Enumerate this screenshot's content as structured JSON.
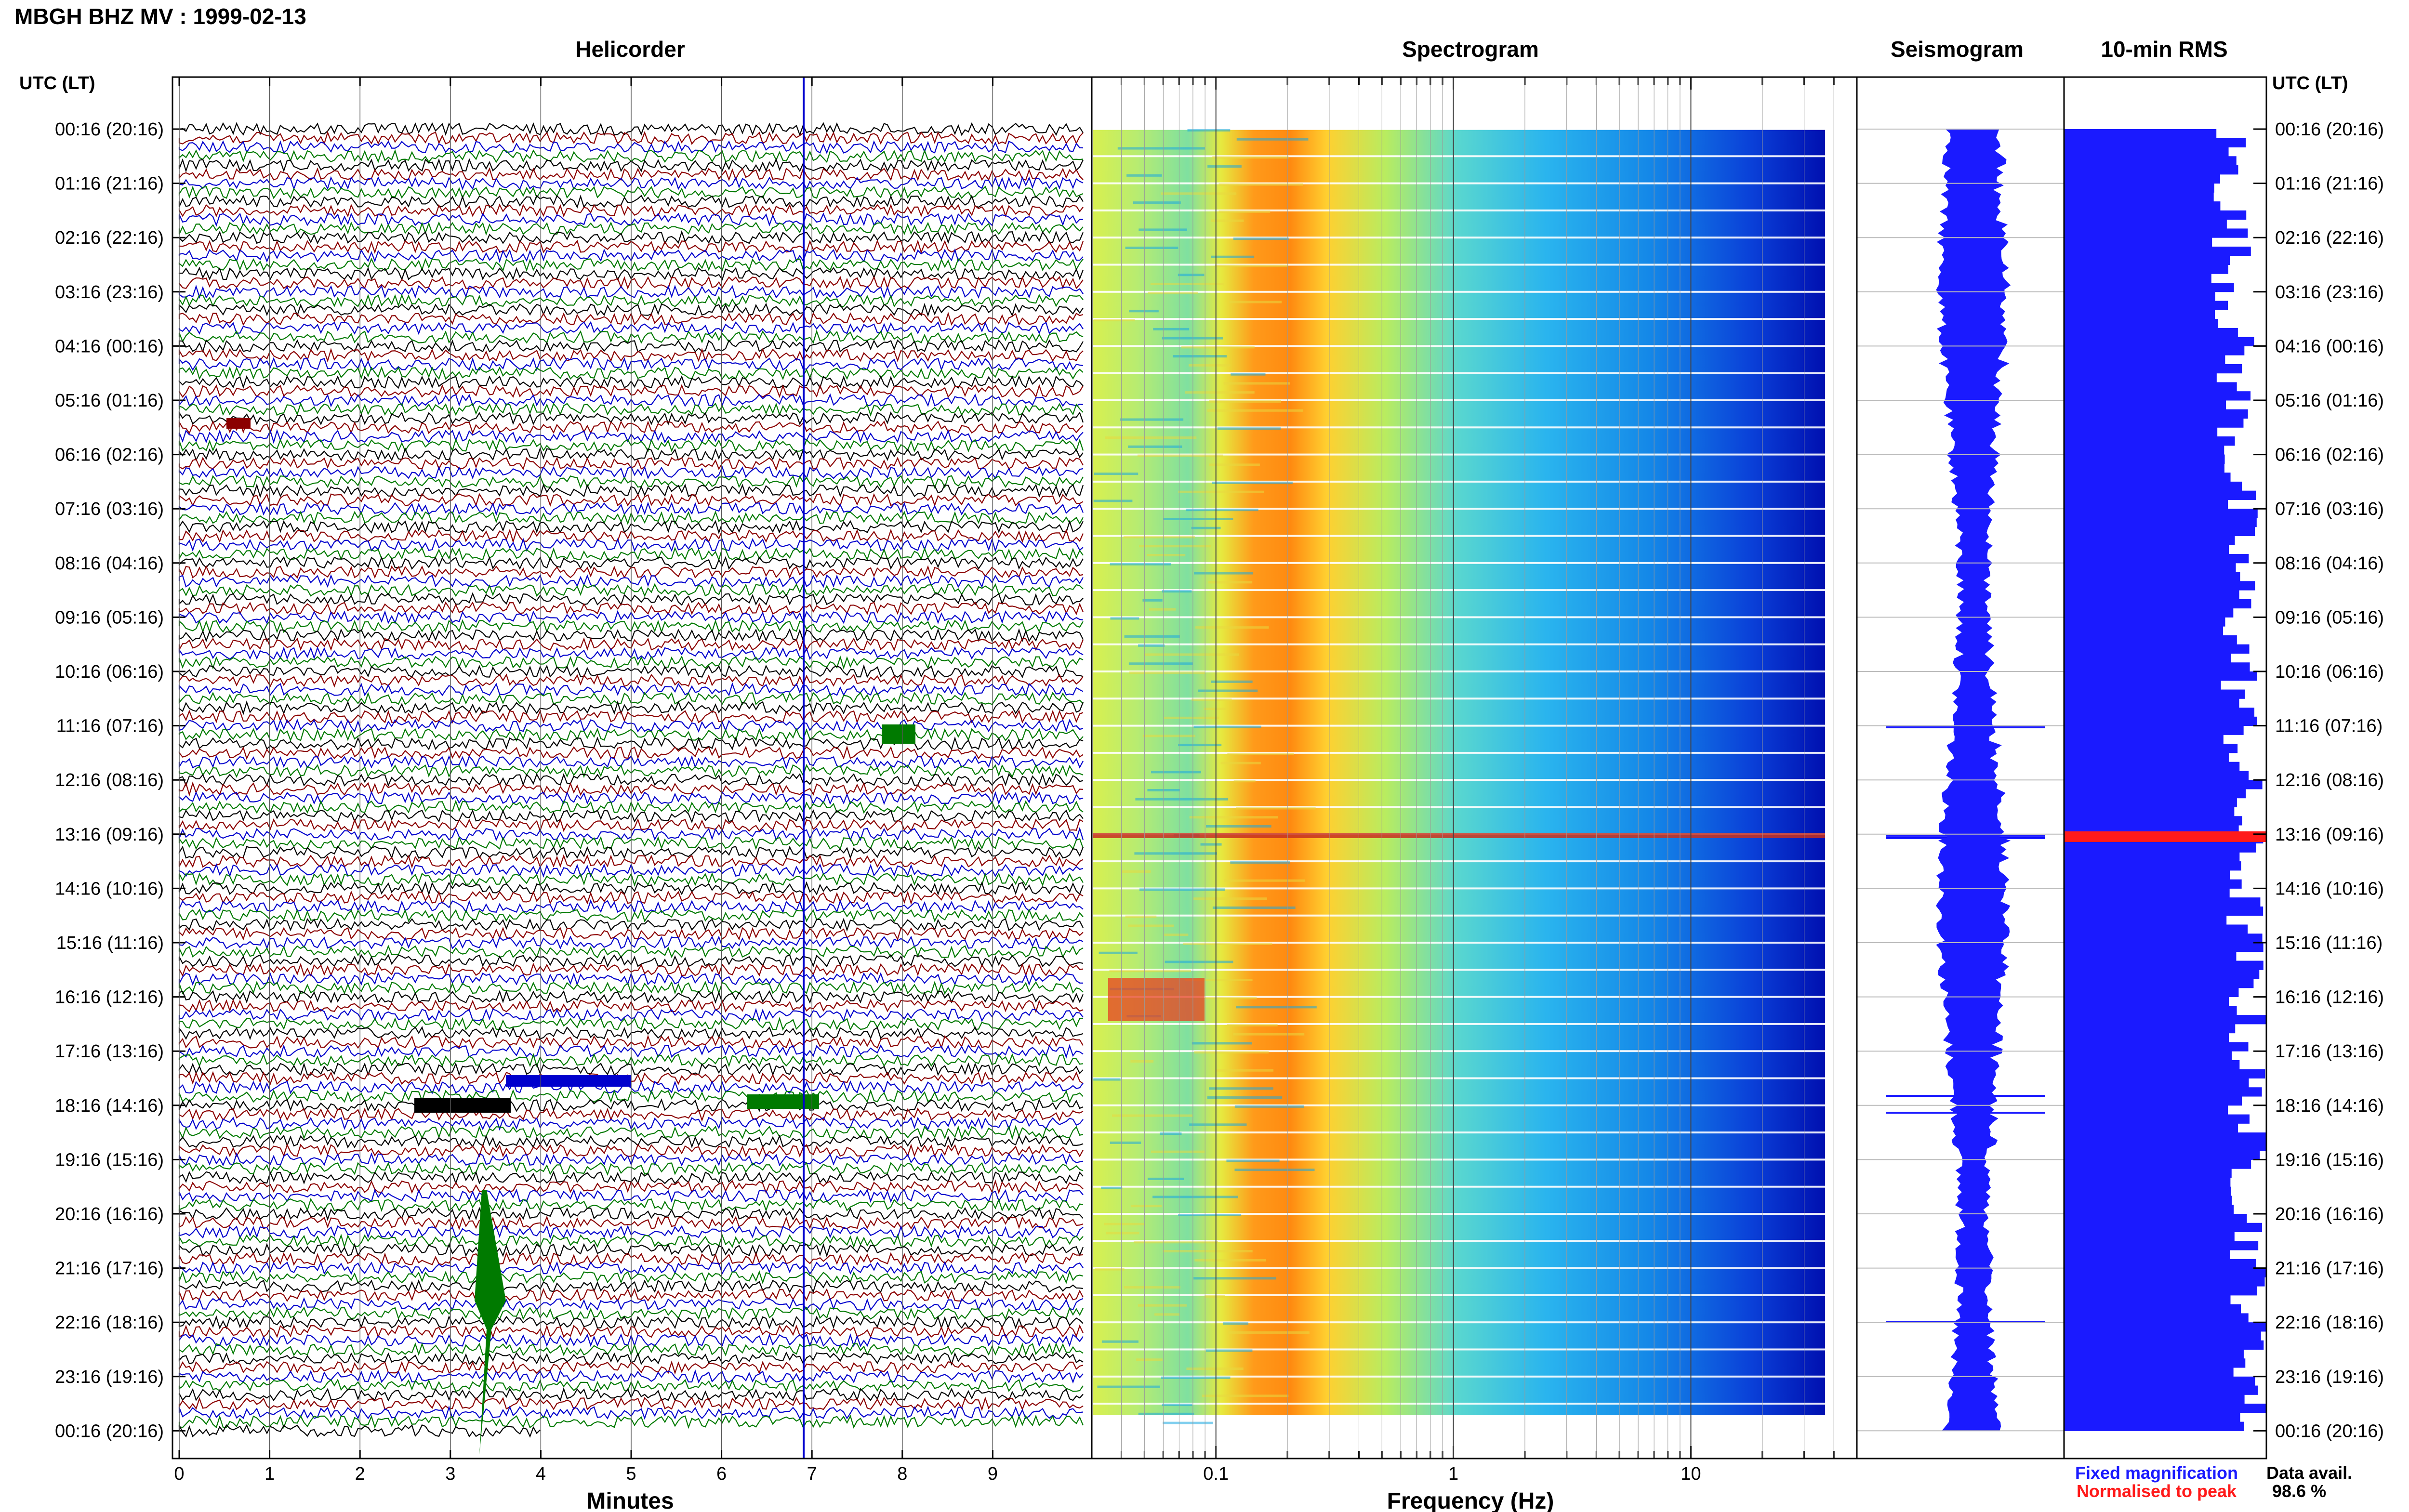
{
  "header": {
    "title": "MBGH BHZ MV : 1999-02-13"
  },
  "panels": {
    "helicorder": "Helicorder",
    "spectrogram": "Spectrogram",
    "seismogram": "Seismogram",
    "rms": "10-min RMS"
  },
  "axis": {
    "time_label": "UTC (LT)",
    "minutes_label": "Minutes",
    "frequency_label": "Frequency (Hz)"
  },
  "legend": {
    "fixed": "Fixed magnification",
    "fixed_color": "#1a1aff",
    "normalised": "Normalised to peak",
    "normalised_color": "#ff1a1a"
  },
  "availability": {
    "label": "Data avail.",
    "value": "98.6 %"
  },
  "chart_data": {
    "type": "line",
    "title": "MBGH BHZ MV : 1999-02-13",
    "time_ticks": [
      "00:16 (20:16)",
      "01:16 (21:16)",
      "02:16 (22:16)",
      "03:16 (23:16)",
      "04:16 (00:16)",
      "05:16 (01:16)",
      "06:16 (02:16)",
      "07:16 (03:16)",
      "08:16 (04:16)",
      "09:16 (05:16)",
      "10:16 (06:16)",
      "11:16 (07:16)",
      "12:16 (08:16)",
      "13:16 (09:16)",
      "14:16 (10:16)",
      "15:16 (11:16)",
      "16:16 (12:16)",
      "17:16 (13:16)",
      "18:16 (14:16)",
      "19:16 (15:16)",
      "20:16 (16:16)",
      "21:16 (17:16)",
      "22:16 (18:16)",
      "23:16 (19:16)",
      "00:16 (20:16)"
    ],
    "helicorder": {
      "xlabel": "Minutes",
      "x_ticks": [
        0,
        1,
        2,
        3,
        4,
        5,
        6,
        7,
        8,
        9
      ],
      "xlim": [
        0,
        10
      ],
      "rows_per_hour": 6,
      "trace_colors": [
        "#000000",
        "#8b0000",
        "#0000cd",
        "#007a00"
      ]
    },
    "spectrogram": {
      "xlabel": "Frequency (Hz)",
      "scale": "log",
      "x_ticks": [
        "0.1",
        "1",
        "10"
      ],
      "xlim": [
        0.03,
        50
      ],
      "peak_band_hz": [
        0.2,
        0.5
      ]
    },
    "rms": {
      "highlight_time": "13:16",
      "highlight_color": "#ff0000"
    }
  }
}
